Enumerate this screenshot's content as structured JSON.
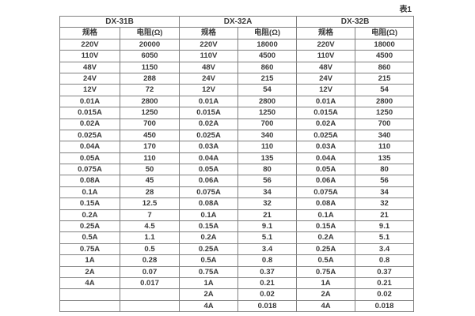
{
  "page": {
    "table_caption": "表1"
  },
  "colors": {
    "border": "#808080",
    "text": "#3a3a3a",
    "background": "#ffffff"
  },
  "table": {
    "groups": [
      {
        "name": "DX-31B",
        "col_headers": [
          "规格",
          "电阻(Ω)"
        ]
      },
      {
        "name": "DX-32A",
        "col_headers": [
          "规格",
          "电阻(Ω)"
        ]
      },
      {
        "name": "DX-32B",
        "col_headers": [
          "规格",
          "电阻(Ω)"
        ]
      }
    ],
    "rows": [
      [
        "220V",
        "20000",
        "220V",
        "18000",
        "220V",
        "18000"
      ],
      [
        "110V",
        "6050",
        "110V",
        "4500",
        "110V",
        "4500"
      ],
      [
        "48V",
        "1150",
        "48V",
        "860",
        "48V",
        "860"
      ],
      [
        "24V",
        "288",
        "24V",
        "215",
        "24V",
        "215"
      ],
      [
        "12V",
        "72",
        "12V",
        "54",
        "12V",
        "54"
      ],
      [
        "0.01A",
        "2800",
        "0.01A",
        "2800",
        "0.01A",
        "2800"
      ],
      [
        "0.015A",
        "1250",
        "0.015A",
        "1250",
        "0.015A",
        "1250"
      ],
      [
        "0.02A",
        "700",
        "0.02A",
        "700",
        "0.02A",
        "700"
      ],
      [
        "0.025A",
        "450",
        "0.025A",
        "340",
        "0.025A",
        "340"
      ],
      [
        "0.04A",
        "170",
        "0.03A",
        "110",
        "0.03A",
        "110"
      ],
      [
        "0.05A",
        "110",
        "0.04A",
        "135",
        "0.04A",
        "135"
      ],
      [
        "0.075A",
        "50",
        "0.05A",
        "80",
        "0.05A",
        "80"
      ],
      [
        "0.08A",
        "45",
        "0.06A",
        "56",
        "0.06A",
        "56"
      ],
      [
        "0.1A",
        "28",
        "0.075A",
        "34",
        "0.075A",
        "34"
      ],
      [
        "0.15A",
        "12.5",
        "0.08A",
        "32",
        "0.08A",
        "32"
      ],
      [
        "0.2A",
        "7",
        "0.1A",
        "21",
        "0.1A",
        "21"
      ],
      [
        "0.25A",
        "4.5",
        "0.15A",
        "9.1",
        "0.15A",
        "9.1"
      ],
      [
        "0.5A",
        "1.1",
        "0.2A",
        "5.1",
        "0.2A",
        "5.1"
      ],
      [
        "0.75A",
        "0.5",
        "0.25A",
        "3.4",
        "0.25A",
        "3.4"
      ],
      [
        "1A",
        "0.28",
        "0.5A",
        "0.8",
        "0.5A",
        "0.8"
      ],
      [
        "2A",
        "0.07",
        "0.75A",
        "0.37",
        "0.75A",
        "0.37"
      ],
      [
        "4A",
        "0.017",
        "1A",
        "0.21",
        "1A",
        "0.21"
      ],
      [
        "",
        "",
        "2A",
        "0.02",
        "2A",
        "0.02"
      ],
      [
        "",
        "",
        "4A",
        "0.018",
        "4A",
        "0.018"
      ]
    ]
  }
}
